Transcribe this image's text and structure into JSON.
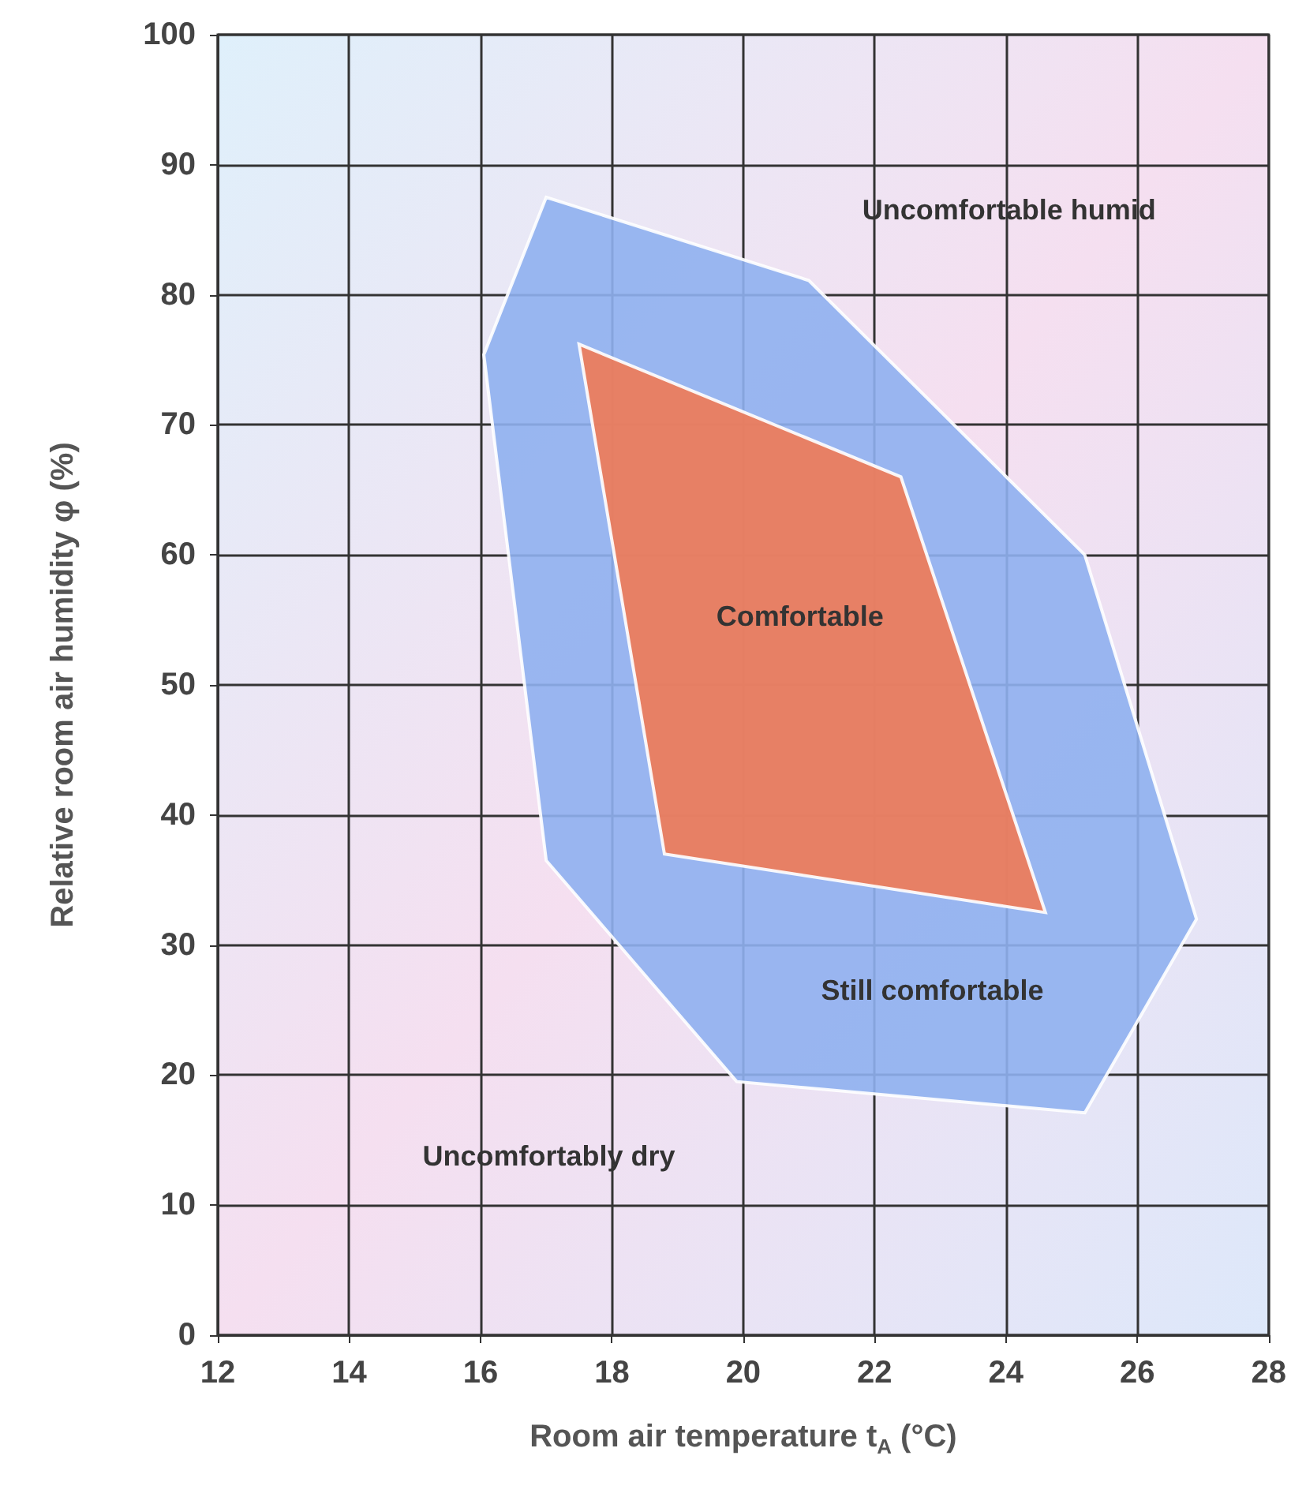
{
  "chart_data": {
    "type": "area",
    "xlabel": "Room air temperature t$_{A}$ (°C)",
    "ylabel": "Relative room air humidity φ (%)",
    "xlim": [
      12,
      28
    ],
    "xticks": [
      12,
      14,
      16,
      18,
      20,
      22,
      24,
      26,
      28
    ],
    "ylim": [
      0,
      100
    ],
    "yticks": [
      0,
      10,
      20,
      30,
      40,
      50,
      60,
      70,
      80,
      90,
      100
    ],
    "grid": true,
    "series": [
      {
        "color": "#8fb0f0",
        "x": [
          16.05,
          17,
          21,
          25.2,
          26.9,
          25.2,
          19.9,
          17
        ],
        "values": [
          75.4,
          87.5,
          81.1,
          60,
          32,
          17.1,
          19.5,
          36.5
        ]
      },
      {
        "color": "#f07a55",
        "x": [
          17.5,
          22.4,
          24.6,
          18.8
        ],
        "values": [
          76.2,
          66,
          32.5,
          37
        ]
      }
    ],
    "annotations": [
      "Uncomfortable humid",
      "Comfortable",
      "Still comfortable",
      "Uncomfortably dry"
    ]
  }
}
